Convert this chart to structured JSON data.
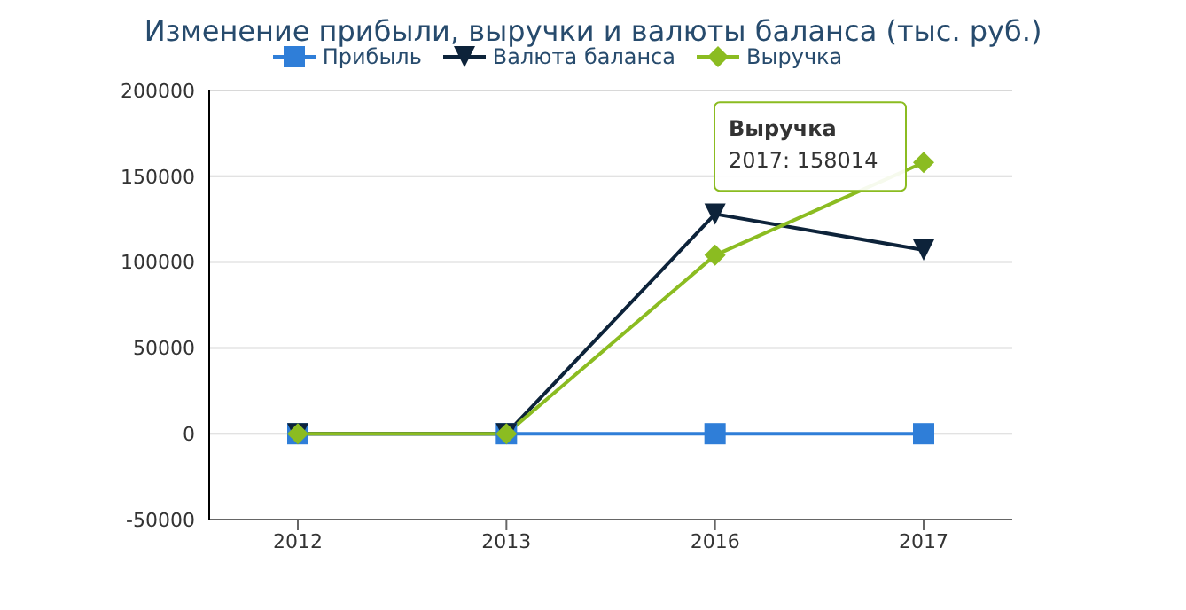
{
  "chart_data": {
    "type": "line",
    "title": "Изменение прибыли, выручки и валюты баланса (тыс. руб.)",
    "categories": [
      "2012",
      "2013",
      "2016",
      "2017"
    ],
    "series": [
      {
        "name": "Прибыль",
        "color": "#2f7ed8",
        "marker": "square",
        "values": [
          0,
          0,
          0,
          0
        ]
      },
      {
        "name": "Валюта баланса",
        "color": "#0d233a",
        "marker": "triangle",
        "values": [
          0,
          0,
          128000,
          107000
        ]
      },
      {
        "name": "Выручка",
        "color": "#8bbc21",
        "marker": "diamond",
        "values": [
          0,
          0,
          104000,
          158014
        ]
      }
    ],
    "ylim": [
      -50000,
      200000
    ],
    "yticks": [
      -50000,
      0,
      50000,
      100000,
      150000,
      200000
    ],
    "grid": "y",
    "legend": "top",
    "annotations": [
      "Выручка",
      {
        "text": "2017: 158014",
        "x": "2017",
        "y": 158014
      }
    ]
  }
}
